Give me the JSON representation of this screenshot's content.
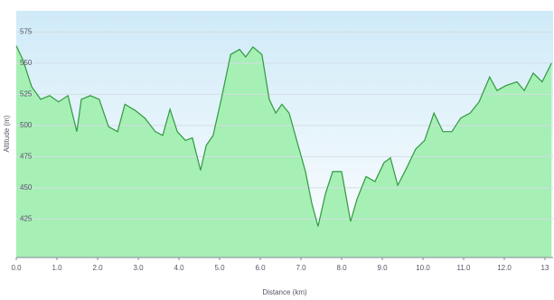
{
  "chart_data": {
    "type": "area",
    "x_label": "Distance (km)",
    "y_label": "Altitude (m)",
    "x": [
      0,
      0.16,
      0.38,
      0.6,
      0.82,
      1.04,
      1.27,
      1.49,
      1.6,
      1.82,
      2.04,
      2.27,
      2.49,
      2.67,
      2.93,
      3.16,
      3.42,
      3.6,
      3.78,
      3.96,
      4.16,
      4.33,
      4.53,
      4.67,
      4.84,
      5.04,
      5.27,
      5.49,
      5.64,
      5.82,
      6.04,
      6.22,
      6.38,
      6.53,
      6.71,
      6.93,
      7.11,
      7.27,
      7.42,
      7.6,
      7.78,
      8.0,
      8.22,
      8.38,
      8.6,
      8.82,
      9.04,
      9.2,
      9.38,
      9.6,
      9.82,
      10.04,
      10.27,
      10.49,
      10.71,
      10.93,
      11.16,
      11.38,
      11.64,
      11.82,
      12.04,
      12.31,
      12.49,
      12.71,
      12.93,
      13.16
    ],
    "values": [
      564,
      553,
      531,
      521,
      524,
      519,
      524,
      495,
      521,
      524,
      521,
      499,
      495,
      517,
      512,
      506,
      495,
      492,
      513,
      495,
      488,
      490,
      464,
      484,
      492,
      521,
      557,
      561,
      555,
      563,
      557,
      521,
      510,
      517,
      510,
      484,
      463,
      437,
      419,
      445,
      463,
      463,
      423,
      441,
      459,
      455,
      470,
      474,
      452,
      466,
      481,
      488,
      510,
      495,
      495,
      506,
      510,
      519,
      539,
      528,
      532,
      535,
      528,
      542,
      535,
      550
    ],
    "color": "#2f9a3e",
    "fill": "#a6efb5",
    "xlim": [
      0,
      13.2
    ],
    "ylim": [
      394,
      592
    ],
    "xticks": [
      {
        "value": 0,
        "label": "0.0"
      },
      {
        "value": 1,
        "label": "1.0"
      },
      {
        "value": 2,
        "label": "2.0"
      },
      {
        "value": 3,
        "label": "3.0"
      },
      {
        "value": 4,
        "label": "4.0"
      },
      {
        "value": 5,
        "label": "5.0"
      },
      {
        "value": 6,
        "label": "6.0"
      },
      {
        "value": 7,
        "label": "7.0"
      },
      {
        "value": 8,
        "label": "8.0"
      },
      {
        "value": 9,
        "label": "9.0"
      },
      {
        "value": 10,
        "label": "10.0"
      },
      {
        "value": 11,
        "label": "11.0"
      },
      {
        "value": 12,
        "label": "12.0"
      },
      13
    ],
    "yticks": [
      425,
      450,
      475,
      500,
      525,
      550,
      575
    ],
    "grid": true
  }
}
